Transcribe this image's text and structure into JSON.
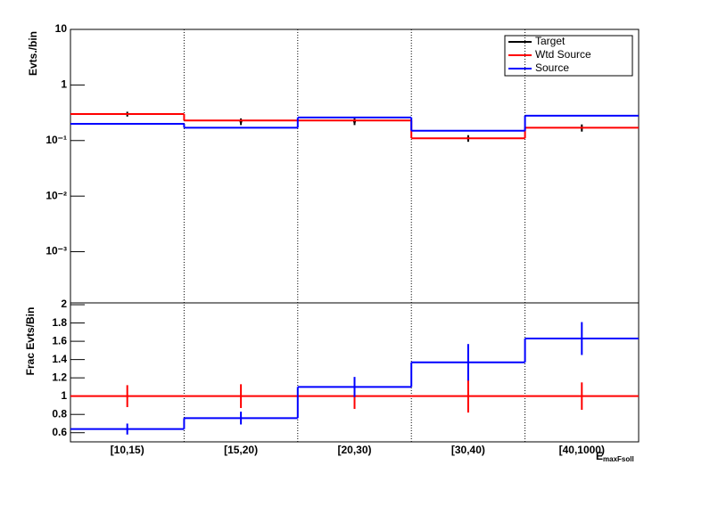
{
  "chart_data": [
    {
      "type": "step",
      "y_label": "Evts./bin",
      "log_y": true,
      "ylim": [
        0.00012,
        10
      ],
      "yticks": [
        {
          "value": 10,
          "label": "10"
        },
        {
          "value": 1,
          "label": "1"
        },
        {
          "value": 0.1,
          "label": "10⁻¹"
        },
        {
          "value": 0.01,
          "label": "10⁻²"
        },
        {
          "value": 0.001,
          "label": "10⁻³"
        }
      ],
      "legend": "top-right",
      "series": [
        {
          "name": "Target",
          "color": "#000000",
          "values": [
            0.3,
            0.22,
            0.22,
            0.11,
            0.17
          ],
          "errors": [
            0.03,
            0.03,
            0.03,
            0.015,
            0.025
          ],
          "style": "points"
        },
        {
          "name": "Wtd Source",
          "color": "#ff0000",
          "values": [
            0.3,
            0.23,
            0.23,
            0.11,
            0.17
          ],
          "style": "step"
        },
        {
          "name": "Source",
          "color": "#0000ff",
          "values": [
            0.2,
            0.17,
            0.26,
            0.15,
            0.28
          ],
          "style": "step"
        }
      ]
    },
    {
      "type": "step",
      "y_label": "Frac Evts/Bin",
      "x_label": "E",
      "x_label_sub": "maxFsoll",
      "categories": [
        "[10,15)",
        "[15,20)",
        "[20,30)",
        "[30,40)",
        "[40,1000)"
      ],
      "ylim": [
        0.5,
        2.02
      ],
      "yticks": [
        0.6,
        0.8,
        1,
        1.2,
        1.4,
        1.6,
        1.8,
        2
      ],
      "series": [
        {
          "color": "#ff0000",
          "values": [
            1,
            1,
            1,
            1,
            1
          ],
          "errors": [
            0.12,
            0.13,
            0.14,
            0.18,
            0.15
          ]
        },
        {
          "color": "#0000ff",
          "values": [
            0.64,
            0.76,
            1.1,
            1.37,
            1.63
          ],
          "errors": [
            0.06,
            0.07,
            0.11,
            0.2,
            0.18
          ]
        }
      ]
    }
  ]
}
